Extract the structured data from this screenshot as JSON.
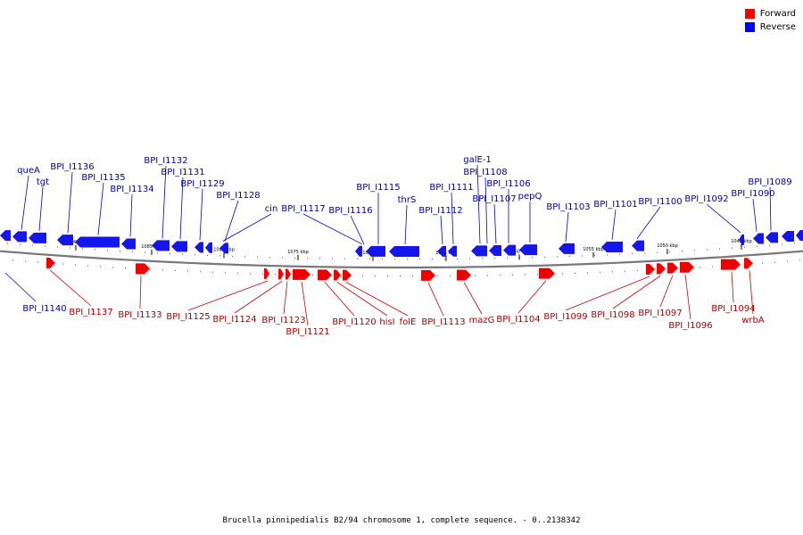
{
  "caption": "Brucella pinnipedialis B2/94 chromosome 1, complete sequence. - 0..2138342",
  "legend": [
    {
      "label": "Forward",
      "color": "#ff0000"
    },
    {
      "label": "Reverse",
      "color": "#0000ff"
    }
  ],
  "colors": {
    "forward": "#ee0000",
    "reverse": "#1515ee",
    "forward_text": "#aa0000",
    "reverse_text": "#000099",
    "backbone": "#888888"
  },
  "ticks": [
    "1090 kbp",
    "1085 kbp",
    "1080 kbp",
    "1075 kbp",
    "1070 kbp",
    "1065 kbp",
    "1060 kbp",
    "1055 kbp",
    "1050 kbp",
    "1045 kbp"
  ],
  "reverse_genes": [
    "queA",
    "tgt",
    "BPI_I1136",
    "BPI_I1135",
    "BPI_I1134",
    "BPI_I1132",
    "BPI_I1131",
    "BPI_I1129",
    "BPI_I1128",
    "cin",
    "BPI_I1117",
    "BPI_I1116",
    "BPI_I1115",
    "thrS",
    "BPI_I1112",
    "BPI_I1111",
    "galE-1",
    "BPI_I1108",
    "BPI_I1107",
    "BPI_I1106",
    "pepQ",
    "BPI_I1103",
    "BPI_I1101",
    "BPI_I1100",
    "BPI_I1092",
    "BPI_I1090",
    "BPI_I1089",
    "BPI_I1140"
  ],
  "forward_genes": [
    "BPI_I1137",
    "BPI_I1133",
    "BPI_I1125",
    "BPI_I1124",
    "BPI_I1123",
    "BPI_I1121",
    "BPI_I1120",
    "hisI",
    "folE",
    "BPI_I1113",
    "mazG",
    "BPI_I1104",
    "BPI_I1099",
    "BPI_I1098",
    "BPI_I1097",
    "BPI_I1096",
    "BPI_I1094",
    "wrbA"
  ]
}
